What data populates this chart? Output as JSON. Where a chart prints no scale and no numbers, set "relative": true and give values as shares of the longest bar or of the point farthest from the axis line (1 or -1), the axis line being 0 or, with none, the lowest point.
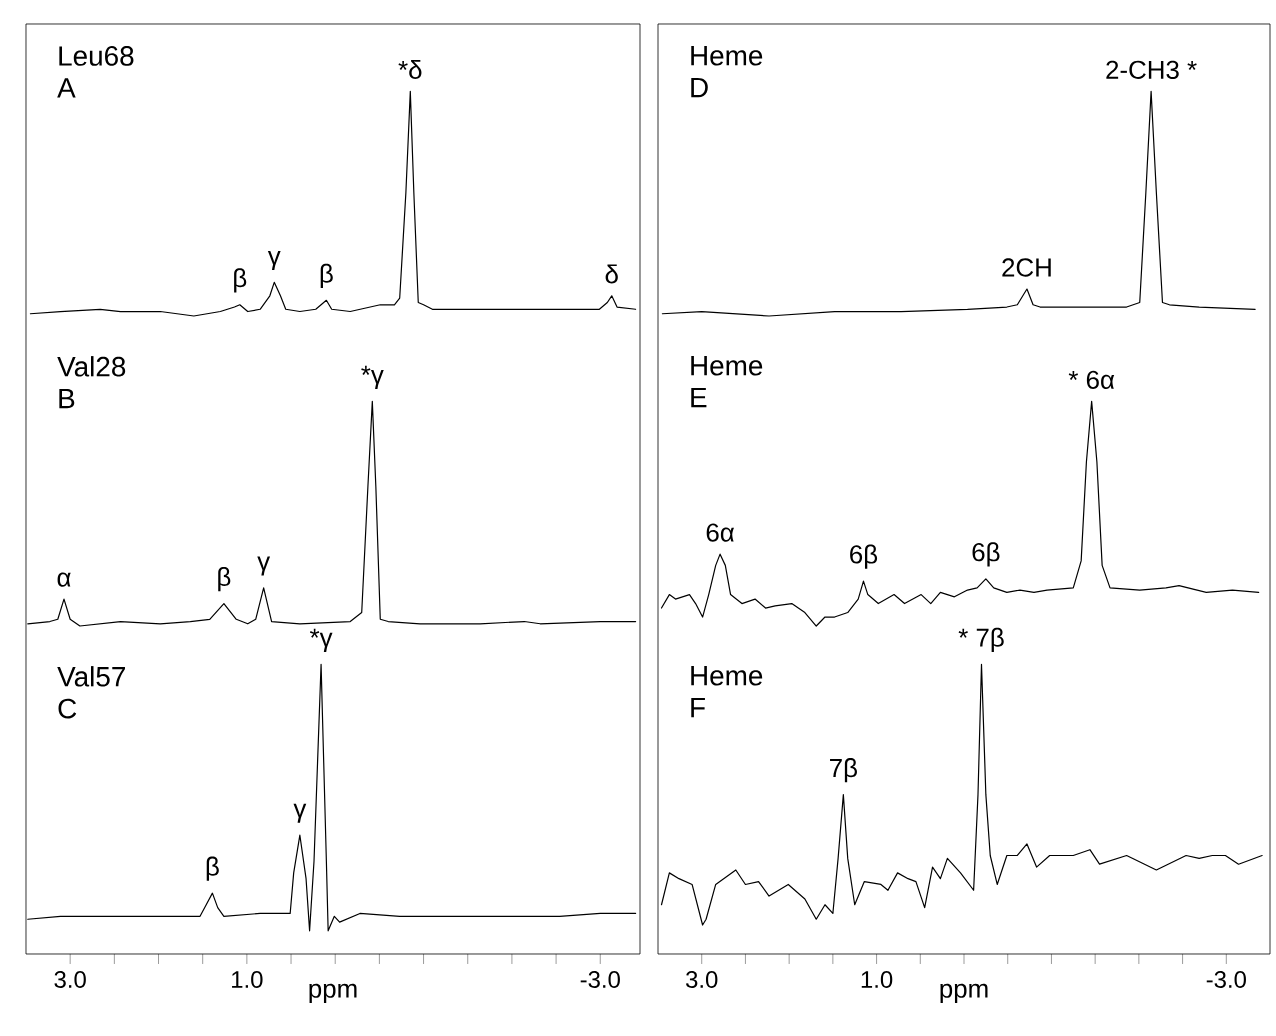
{
  "chart_data": [
    {
      "type": "line",
      "title": "Leu68",
      "subtitle": "A",
      "relative": true,
      "color": "#000000",
      "xlim": [
        3.5,
        -3.45
      ],
      "tick_labels": false,
      "x": [
        3.45,
        3.11,
        2.66,
        2.43,
        1.98,
        1.6,
        1.3,
        1.14,
        1.08,
        0.99,
        0.85,
        0.74,
        0.69,
        0.62,
        0.56,
        0.4,
        0.22,
        0.1,
        0.04,
        -0.17,
        -0.51,
        -0.67,
        -0.73,
        -0.8,
        -0.85,
        -0.89,
        -0.94,
        -1.0,
        -1.1,
        -1.41,
        -2.09,
        -2.77,
        -2.99,
        -3.08,
        -3.13,
        -3.19,
        -3.4
      ],
      "values": [
        0.01,
        0.02,
        0.03,
        0.02,
        0.02,
        0,
        0.02,
        0.04,
        0.05,
        0.02,
        0.03,
        0.09,
        0.15,
        0.09,
        0.03,
        0.02,
        0.03,
        0.07,
        0.03,
        0.02,
        0.05,
        0.05,
        0.08,
        0.55,
        1,
        0.55,
        0.06,
        0.05,
        0.03,
        0.03,
        0.03,
        0.03,
        0.03,
        0.06,
        0.09,
        0.04,
        0.03
      ],
      "annotations": [
        {
          "text": "β",
          "x": 1.08,
          "y": 0.05
        },
        {
          "text": "γ",
          "x": 0.69,
          "y": 0.15
        },
        {
          "text": "β",
          "x": 0.1,
          "y": 0.07
        },
        {
          "text": "*δ",
          "x": -0.85,
          "y": 1
        },
        {
          "text": "δ",
          "x": -3.13,
          "y": 0.09
        }
      ]
    },
    {
      "type": "line",
      "title": "Heme",
      "subtitle": "D",
      "relative": true,
      "color": "#000000",
      "xlim": [
        3.5,
        -3.5
      ],
      "tick_labels": false,
      "x": [
        3.45,
        3.0,
        2.23,
        1.48,
        0.72,
        -0.04,
        -0.49,
        -0.61,
        -0.72,
        -0.79,
        -0.87,
        -1.4,
        -1.86,
        -2.01,
        -2.08,
        -2.14,
        -2.2,
        -2.27,
        -2.35,
        -2.69,
        -3.33
      ],
      "values": [
        0.01,
        0.02,
        0,
        0.02,
        0.02,
        0.03,
        0.04,
        0.05,
        0.12,
        0.05,
        0.04,
        0.04,
        0.04,
        0.06,
        0.55,
        1,
        0.55,
        0.06,
        0.05,
        0.04,
        0.03
      ],
      "annotations": [
        {
          "text": "2CH",
          "x": -0.72,
          "y": 0.12
        },
        {
          "text": "2-CH3 *",
          "x": -2.14,
          "y": 1
        }
      ]
    },
    {
      "type": "line",
      "title": "Val28",
      "subtitle": "B",
      "relative": true,
      "color": "#000000",
      "xlim": [
        3.5,
        -3.45
      ],
      "tick_labels": false,
      "x": [
        3.48,
        3.23,
        3.14,
        3.07,
        3.0,
        2.89,
        2.43,
        1.98,
        1.64,
        1.42,
        1.26,
        1.12,
        0.99,
        0.9,
        0.81,
        0.72,
        0.4,
        -0.17,
        -0.3,
        -0.37,
        -0.42,
        -0.46,
        -0.51,
        -0.6,
        -0.96,
        -1.64,
        -2.14,
        -2.32,
        -3.0,
        -3.4
      ],
      "values": [
        0.01,
        0.02,
        0.03,
        0.12,
        0.03,
        0,
        0.02,
        0.01,
        0.02,
        0.03,
        0.1,
        0.03,
        0.01,
        0.03,
        0.17,
        0.02,
        0.01,
        0.02,
        0.06,
        0.62,
        1,
        0.62,
        0.03,
        0.02,
        0.01,
        0.01,
        0.02,
        0.01,
        0.02,
        0.02
      ],
      "annotations": [
        {
          "text": "α",
          "x": 3.07,
          "y": 0.12
        },
        {
          "text": "β",
          "x": 1.26,
          "y": 0.1
        },
        {
          "text": "γ",
          "x": 0.81,
          "y": 0.17
        },
        {
          "text": "*γ",
          "x": -0.42,
          "y": 1
        }
      ]
    },
    {
      "type": "line",
      "title": "Heme",
      "subtitle": "E",
      "relative": true,
      "color": "#000000",
      "xlim": [
        3.5,
        -3.5
      ],
      "tick_labels": false,
      "x": [
        3.46,
        3.37,
        3.3,
        3.14,
        3.07,
        2.99,
        2.92,
        2.84,
        2.79,
        2.73,
        2.67,
        2.54,
        2.39,
        2.27,
        2.16,
        1.97,
        1.82,
        1.69,
        1.59,
        1.48,
        1.33,
        1.21,
        1.15,
        1.1,
        0.98,
        0.8,
        0.68,
        0.49,
        0.38,
        0.27,
        0.11,
        -0.04,
        -0.15,
        -0.25,
        -0.34,
        -0.49,
        -0.64,
        -0.8,
        -0.95,
        -1.25,
        -1.34,
        -1.4,
        -1.46,
        -1.52,
        -1.58,
        -1.67,
        -2.01,
        -2.31,
        -2.46,
        -2.77,
        -3.07,
        -3.37
      ],
      "values": [
        0.08,
        0.14,
        0.12,
        0.14,
        0.1,
        0.04,
        0.14,
        0.27,
        0.32,
        0.27,
        0.14,
        0.1,
        0.12,
        0.08,
        0.09,
        0.1,
        0.06,
        0,
        0.04,
        0.04,
        0.06,
        0.12,
        0.2,
        0.14,
        0.1,
        0.14,
        0.1,
        0.14,
        0.1,
        0.15,
        0.13,
        0.16,
        0.17,
        0.21,
        0.17,
        0.15,
        0.16,
        0.15,
        0.16,
        0.17,
        0.29,
        0.73,
        1,
        0.73,
        0.27,
        0.17,
        0.16,
        0.17,
        0.18,
        0.15,
        0.16,
        0.15
      ],
      "annotations": [
        {
          "text": "6α",
          "x": 2.79,
          "y": 0.32
        },
        {
          "text": "6β",
          "x": 1.15,
          "y": 0.2
        },
        {
          "text": "6β",
          "x": -0.25,
          "y": 0.21
        },
        {
          "text": "* 6α",
          "x": -1.46,
          "y": 1
        }
      ]
    },
    {
      "type": "line",
      "title": "Val57",
      "subtitle": "C",
      "relative": true,
      "color": "#000000",
      "xlim": [
        3.5,
        -3.45
      ],
      "xlabel": "ppm",
      "xticks": [
        {
          "value": 3.0,
          "label": "3.0"
        },
        {
          "value": 2.5,
          "label": null
        },
        {
          "value": 2.0,
          "label": null
        },
        {
          "value": 1.5,
          "label": null
        },
        {
          "value": 1.0,
          "label": "1.0"
        },
        {
          "value": 0.5,
          "label": null
        },
        {
          "value": 0.0,
          "label": null
        },
        {
          "value": -0.5,
          "label": null
        },
        {
          "value": -1.0,
          "label": null
        },
        {
          "value": -1.5,
          "label": null
        },
        {
          "value": -2.0,
          "label": null
        },
        {
          "value": -2.5,
          "label": null
        },
        {
          "value": -3.0,
          "label": "-3.0"
        }
      ],
      "x": [
        3.48,
        3.11,
        2.43,
        1.76,
        1.53,
        1.46,
        1.39,
        1.33,
        1.26,
        0.85,
        0.51,
        0.47,
        0.4,
        0.33,
        0.29,
        0.24,
        0.16,
        0.1,
        0.08,
        0.01,
        -0.05,
        -0.28,
        -0.73,
        -1.64,
        -2.54,
        -3.0,
        -3.4
      ],
      "values": [
        0.12,
        0.13,
        0.13,
        0.13,
        0.13,
        0.17,
        0.21,
        0.16,
        0.13,
        0.14,
        0.14,
        0.28,
        0.41,
        0.26,
        0.08,
        0.32,
        1,
        0.32,
        0.08,
        0.13,
        0.11,
        0.14,
        0.13,
        0.13,
        0.13,
        0.14,
        0.14
      ],
      "annotations": [
        {
          "text": "β",
          "x": 1.39,
          "y": 0.21
        },
        {
          "text": "γ",
          "x": 0.4,
          "y": 0.41
        },
        {
          "text": "*γ",
          "x": 0.16,
          "y": 1
        }
      ]
    },
    {
      "type": "line",
      "title": "Heme",
      "subtitle": "F",
      "relative": true,
      "color": "#000000",
      "xlim": [
        3.5,
        -3.5
      ],
      "xlabel": "ppm",
      "xticks": [
        {
          "value": 3.0,
          "label": "3.0"
        },
        {
          "value": 2.5,
          "label": null
        },
        {
          "value": 2.0,
          "label": null
        },
        {
          "value": 1.5,
          "label": null
        },
        {
          "value": 1.0,
          "label": "1.0"
        },
        {
          "value": 0.5,
          "label": null
        },
        {
          "value": 0.0,
          "label": null
        },
        {
          "value": -0.5,
          "label": null
        },
        {
          "value": -1.0,
          "label": null
        },
        {
          "value": -1.5,
          "label": null
        },
        {
          "value": -2.0,
          "label": null
        },
        {
          "value": -2.5,
          "label": null
        },
        {
          "value": -3.0,
          "label": "-3.0"
        }
      ],
      "x": [
        3.46,
        3.37,
        3.26,
        3.11,
        2.99,
        2.95,
        2.84,
        2.61,
        2.5,
        2.35,
        2.23,
        2.01,
        1.82,
        1.69,
        1.59,
        1.5,
        1.44,
        1.38,
        1.33,
        1.25,
        1.14,
        0.95,
        0.87,
        0.76,
        0.64,
        0.55,
        0.45,
        0.36,
        0.27,
        0.19,
        0.04,
        -0.11,
        -0.16,
        -0.2,
        -0.25,
        -0.3,
        -0.38,
        -0.49,
        -0.61,
        -0.72,
        -0.83,
        -0.98,
        -1.25,
        -1.44,
        -1.55,
        -1.86,
        -2.2,
        -2.54,
        -2.69,
        -2.84,
        -2.99,
        -3.14,
        -3.41
      ],
      "values": [
        0.17,
        0.28,
        0.26,
        0.24,
        0.1,
        0.12,
        0.24,
        0.29,
        0.24,
        0.25,
        0.2,
        0.24,
        0.19,
        0.12,
        0.17,
        0.14,
        0.33,
        0.55,
        0.33,
        0.17,
        0.25,
        0.24,
        0.22,
        0.28,
        0.26,
        0.25,
        0.16,
        0.3,
        0.26,
        0.33,
        0.28,
        0.22,
        0.55,
        1,
        0.55,
        0.34,
        0.24,
        0.34,
        0.34,
        0.38,
        0.3,
        0.34,
        0.34,
        0.36,
        0.31,
        0.34,
        0.29,
        0.34,
        0.33,
        0.34,
        0.34,
        0.31,
        0.34
      ],
      "annotations": [
        {
          "text": "7β",
          "x": 1.38,
          "y": 0.55
        },
        {
          "text": "* 7β",
          "x": -0.2,
          "y": 1
        }
      ]
    }
  ]
}
